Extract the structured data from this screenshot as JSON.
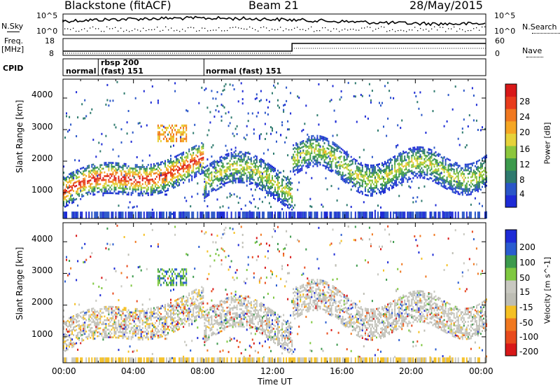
{
  "header": {
    "station": "Blackstone (fitACF)",
    "beam": "Beam 21",
    "date": "28/May/2015"
  },
  "side_labels": {
    "nsky": "N.Sky",
    "freq_top": "Freq.",
    "freq_unit": "[MHz]",
    "cpid": "CPID",
    "nsearch": "N.Search",
    "nave": "Nave"
  },
  "top_axes": {
    "noise_left_ticks": [
      "10^5",
      "10^0"
    ],
    "noise_right_ticks": [
      "10^5",
      "10^0"
    ],
    "freq_ticks": [
      "18",
      "8"
    ],
    "nave_ticks": [
      "60",
      "0"
    ]
  },
  "cpid_segments": [
    {
      "label": "normal",
      "start": "00:00"
    },
    {
      "label": "rbsp 200",
      "start": "02:00"
    },
    {
      "label": "(fast) 151",
      "start": "02:00"
    },
    {
      "label": "normal (fast) 151",
      "start": "08:00"
    }
  ],
  "chart_data": [
    {
      "type": "heatmap",
      "title": "Power",
      "ylabel": "Slant Range [km]",
      "ylim": [
        180,
        4600
      ],
      "yticks": [
        "1000",
        "2000",
        "3000",
        "4000"
      ],
      "xlim": [
        "00:00",
        "24:00"
      ],
      "colorbar": {
        "label": "Power [dB]",
        "ticks": [
          "4",
          "8",
          "12",
          "16",
          "20",
          "24",
          "28"
        ],
        "colors": [
          "#1e2bd6",
          "#2a56c8",
          "#2e7a6e",
          "#3c9a4c",
          "#8cc63c",
          "#e6d23a",
          "#f5a623",
          "#f07820",
          "#e83c1c",
          "#d81818"
        ]
      },
      "features": [
        {
          "t": [
            "00:00",
            "03:00",
            "05:00",
            "07:00"
          ],
          "range": [
            900,
            1300,
            1700,
            2000
          ],
          "note": "main ionospheric scatter band"
        },
        {
          "t": [
            "05:30",
            "07:00"
          ],
          "range": [
            2700,
            3100
          ],
          "note": "upper patch"
        },
        {
          "t": [
            "13:00",
            "24:00"
          ],
          "range": [
            1400,
            2500
          ],
          "note": "wavy band"
        }
      ]
    },
    {
      "type": "heatmap",
      "title": "Velocity",
      "ylabel": "Slant Range [km]",
      "ylim": [
        180,
        4600
      ],
      "yticks": [
        "1000",
        "2000",
        "3000",
        "4000"
      ],
      "xlim": [
        "00:00",
        "24:00"
      ],
      "xticks": [
        "00:00",
        "04:00",
        "08:00",
        "12:00",
        "16:00",
        "20:00",
        "00:00"
      ],
      "xlabel": "Time UT",
      "colorbar": {
        "label": "Velocity [m s^-1]",
        "ticks": [
          "200",
          "100",
          "50",
          "15",
          "-15",
          "-50",
          "-100",
          "-200"
        ],
        "colors": [
          "#1e2bd6",
          "#2a5cd0",
          "#3c9a4c",
          "#7fc840",
          "#c8c8c0",
          "#bdbdb4",
          "#f5c023",
          "#f07820",
          "#e84a1c",
          "#d81818"
        ]
      }
    }
  ]
}
